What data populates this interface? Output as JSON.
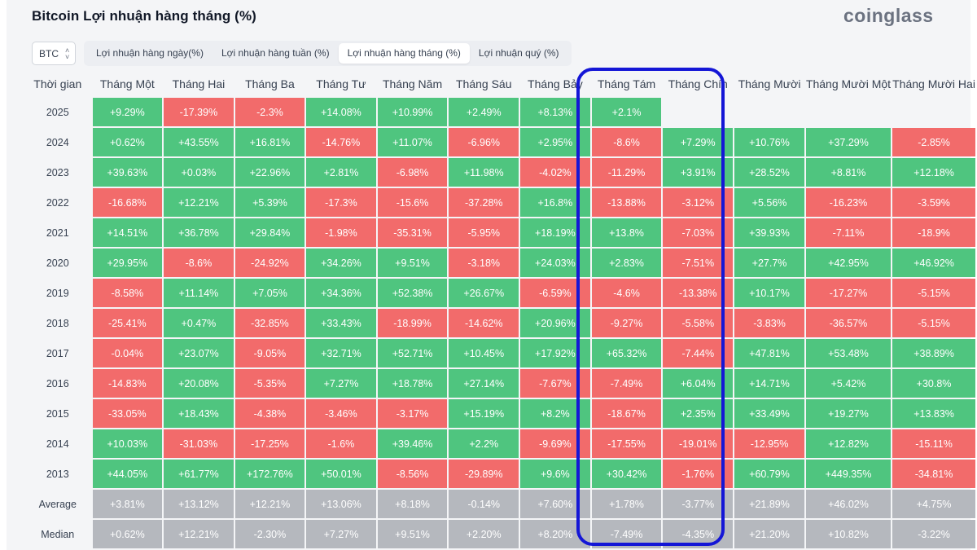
{
  "header": {
    "title": "Bitcoin Lợi nhuận hàng tháng (%)",
    "logo": "coinglass"
  },
  "coin_select": {
    "value": "BTC",
    "icon": "up-down-chevron-icon"
  },
  "tabs": [
    {
      "label": "Lợi nhuận hàng ngày(%)",
      "active": false
    },
    {
      "label": "Lợi nhuận hàng tuần (%)",
      "active": false
    },
    {
      "label": "Lợi nhuận hàng tháng (%)",
      "active": true
    },
    {
      "label": "Lợi nhuận quý (%)",
      "active": false
    }
  ],
  "table": {
    "corner_label": "Thời gian",
    "columns": [
      "Tháng Một",
      "Tháng Hai",
      "Tháng Ba",
      "Tháng Tư",
      "Tháng Năm",
      "Tháng Sáu",
      "Tháng Bảy",
      "Tháng Tám",
      "Tháng Chín",
      "Tháng Mười",
      "Tháng Mười Một",
      "Tháng Mười Hai"
    ],
    "rows": [
      {
        "label": "2025",
        "values": [
          "+9.29%",
          "-17.39%",
          "-2.3%",
          "+14.08%",
          "+10.99%",
          "+2.49%",
          "+8.13%",
          "+2.1%",
          "",
          "",
          "",
          ""
        ]
      },
      {
        "label": "2024",
        "values": [
          "+0.62%",
          "+43.55%",
          "+16.81%",
          "-14.76%",
          "+11.07%",
          "-6.96%",
          "+2.95%",
          "-8.6%",
          "+7.29%",
          "+10.76%",
          "+37.29%",
          "-2.85%"
        ]
      },
      {
        "label": "2023",
        "values": [
          "+39.63%",
          "+0.03%",
          "+22.96%",
          "+2.81%",
          "-6.98%",
          "+11.98%",
          "-4.02%",
          "-11.29%",
          "+3.91%",
          "+28.52%",
          "+8.81%",
          "+12.18%"
        ]
      },
      {
        "label": "2022",
        "values": [
          "-16.68%",
          "+12.21%",
          "+5.39%",
          "-17.3%",
          "-15.6%",
          "-37.28%",
          "+16.8%",
          "-13.88%",
          "-3.12%",
          "+5.56%",
          "-16.23%",
          "-3.59%"
        ]
      },
      {
        "label": "2021",
        "values": [
          "+14.51%",
          "+36.78%",
          "+29.84%",
          "-1.98%",
          "-35.31%",
          "-5.95%",
          "+18.19%",
          "+13.8%",
          "-7.03%",
          "+39.93%",
          "-7.11%",
          "-18.9%"
        ]
      },
      {
        "label": "2020",
        "values": [
          "+29.95%",
          "-8.6%",
          "-24.92%",
          "+34.26%",
          "+9.51%",
          "-3.18%",
          "+24.03%",
          "+2.83%",
          "-7.51%",
          "+27.7%",
          "+42.95%",
          "+46.92%"
        ]
      },
      {
        "label": "2019",
        "values": [
          "-8.58%",
          "+11.14%",
          "+7.05%",
          "+34.36%",
          "+52.38%",
          "+26.67%",
          "-6.59%",
          "-4.6%",
          "-13.38%",
          "+10.17%",
          "-17.27%",
          "-5.15%"
        ]
      },
      {
        "label": "2018",
        "values": [
          "-25.41%",
          "+0.47%",
          "-32.85%",
          "+33.43%",
          "-18.99%",
          "-14.62%",
          "+20.96%",
          "-9.27%",
          "-5.58%",
          "-3.83%",
          "-36.57%",
          "-5.15%"
        ]
      },
      {
        "label": "2017",
        "values": [
          "-0.04%",
          "+23.07%",
          "-9.05%",
          "+32.71%",
          "+52.71%",
          "+10.45%",
          "+17.92%",
          "+65.32%",
          "-7.44%",
          "+47.81%",
          "+53.48%",
          "+38.89%"
        ]
      },
      {
        "label": "2016",
        "values": [
          "-14.83%",
          "+20.08%",
          "-5.35%",
          "+7.27%",
          "+18.78%",
          "+27.14%",
          "-7.67%",
          "-7.49%",
          "+6.04%",
          "+14.71%",
          "+5.42%",
          "+30.8%"
        ]
      },
      {
        "label": "2015",
        "values": [
          "-33.05%",
          "+18.43%",
          "-4.38%",
          "-3.46%",
          "-3.17%",
          "+15.19%",
          "+8.2%",
          "-18.67%",
          "+2.35%",
          "+33.49%",
          "+19.27%",
          "+13.83%"
        ]
      },
      {
        "label": "2014",
        "values": [
          "+10.03%",
          "-31.03%",
          "-17.25%",
          "-1.6%",
          "+39.46%",
          "+2.2%",
          "-9.69%",
          "-17.55%",
          "-19.01%",
          "-12.95%",
          "+12.82%",
          "-15.11%"
        ]
      },
      {
        "label": "2013",
        "values": [
          "+44.05%",
          "+61.77%",
          "+172.76%",
          "+50.01%",
          "-8.56%",
          "-29.89%",
          "+9.6%",
          "+30.42%",
          "-1.76%",
          "+60.79%",
          "+449.35%",
          "-34.81%"
        ]
      }
    ],
    "stats": [
      {
        "label": "Average",
        "values": [
          "+3.81%",
          "+13.12%",
          "+12.21%",
          "+13.06%",
          "+8.18%",
          "-0.14%",
          "+7.60%",
          "+1.78%",
          "-3.77%",
          "+21.89%",
          "+46.02%",
          "+4.75%"
        ]
      },
      {
        "label": "Median",
        "values": [
          "+0.62%",
          "+12.21%",
          "-2.30%",
          "+7.27%",
          "+9.51%",
          "+2.20%",
          "+8.20%",
          "-7.49%",
          "-4.35%",
          "+21.20%",
          "+10.82%",
          "-3.22%"
        ]
      }
    ]
  },
  "highlight": {
    "columns": [
      "Tháng Tám",
      "Tháng Chín"
    ],
    "color": "#1416d6"
  },
  "colors": {
    "positive": "#4fc57f",
    "negative": "#f26b6b",
    "stat": "#b5b8be"
  }
}
